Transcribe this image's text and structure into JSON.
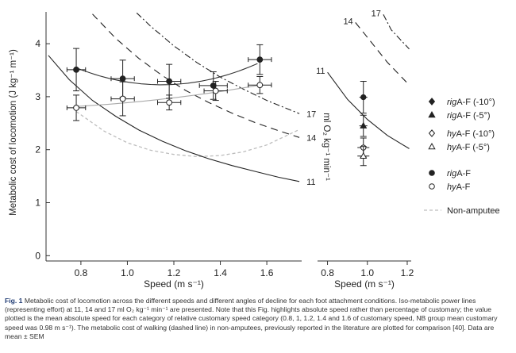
{
  "chart_data": [
    {
      "type": "line",
      "panel": "left",
      "xlabel": "Speed (m s⁻¹)",
      "ylabel": "Metabolic cost of locomotion (J kg⁻¹ m⁻¹)",
      "xlim": [
        0.65,
        1.75
      ],
      "ylim": [
        -0.1,
        4.6
      ],
      "xticks": [
        0.8,
        1.0,
        1.2,
        1.4,
        1.6
      ],
      "yticks": [
        0,
        1,
        2,
        3,
        4
      ],
      "xticklabels": [
        "0.8",
        "1.0",
        "1.2",
        "1.4",
        "1.6"
      ],
      "yticklabels": [
        "0",
        "1",
        "2",
        "3",
        "4"
      ],
      "grid": false,
      "legend": "right",
      "iso_lines": [
        {
          "label": "11",
          "style": "solid",
          "x": [
            0.66,
            0.75,
            0.85,
            0.95,
            1.05,
            1.15,
            1.25,
            1.35,
            1.45,
            1.55,
            1.65,
            1.74
          ],
          "y": [
            3.78,
            3.32,
            2.93,
            2.63,
            2.37,
            2.16,
            1.98,
            1.83,
            1.7,
            1.59,
            1.48,
            1.4
          ]
        },
        {
          "label": "14",
          "style": "dashed",
          "x": [
            0.85,
            0.95,
            1.05,
            1.15,
            1.25,
            1.35,
            1.45,
            1.55,
            1.65,
            1.74
          ],
          "y": [
            4.56,
            4.1,
            3.72,
            3.4,
            3.12,
            2.89,
            2.69,
            2.51,
            2.36,
            2.23
          ]
        },
        {
          "label": "17",
          "style": "dashdot",
          "x": [
            1.04,
            1.1,
            1.2,
            1.3,
            1.4,
            1.5,
            1.6,
            1.74
          ],
          "y": [
            4.58,
            4.33,
            3.96,
            3.64,
            3.37,
            3.14,
            2.93,
            2.68
          ]
        }
      ],
      "non_amputee": {
        "style": "dashed",
        "color": "#bdbdbd",
        "x": [
          0.78,
          0.9,
          1.0,
          1.1,
          1.2,
          1.3,
          1.4,
          1.5,
          1.6,
          1.74
        ],
        "y": [
          2.72,
          2.35,
          2.13,
          1.99,
          1.91,
          1.87,
          1.89,
          1.96,
          2.09,
          2.38
        ]
      },
      "series": [
        {
          "name": "rigA-F",
          "marker": "filled-circle",
          "color": "#222222",
          "fit": true,
          "x": [
            0.78,
            0.98,
            1.18,
            1.37,
            1.57
          ],
          "y": [
            3.51,
            3.34,
            3.29,
            3.21,
            3.7
          ],
          "yerr": [
            0.4,
            0.35,
            0.32,
            0.26,
            0.28
          ],
          "xerr": [
            0.04,
            0.05,
            0.05,
            0.06,
            0.05
          ]
        },
        {
          "name": "hyA-F",
          "marker": "open-circle",
          "color": "#222222",
          "fit": true,
          "x": [
            0.78,
            0.98,
            1.18,
            1.38,
            1.57
          ],
          "y": [
            2.79,
            2.96,
            2.89,
            3.11,
            3.22
          ],
          "yerr": [
            0.24,
            0.32,
            0.14,
            0.18,
            0.16
          ],
          "xerr": [
            0.04,
            0.05,
            0.05,
            0.05,
            0.05
          ]
        }
      ]
    },
    {
      "type": "scatter",
      "panel": "right",
      "xlabel": "Speed (m s⁻¹)",
      "ylabel": "ml O₂ kg⁻¹ min⁻¹",
      "xlim": [
        0.75,
        1.22
      ],
      "xticks": [
        0.8,
        1.0,
        1.2
      ],
      "xticklabels": [
        "0.8",
        "1.0",
        "1.2"
      ],
      "iso_lines": [
        {
          "label": "11",
          "style": "solid",
          "x": [
            0.8,
            0.9,
            1.0,
            1.1,
            1.21
          ],
          "y": [
            3.46,
            2.95,
            2.57,
            2.27,
            2.02
          ]
        },
        {
          "label": "14",
          "style": "dashed",
          "x": [
            0.94,
            1.0,
            1.1,
            1.21
          ],
          "y": [
            4.4,
            4.12,
            3.65,
            3.22
          ]
        },
        {
          "label": "17",
          "style": "dashdot",
          "x": [
            1.08,
            1.12,
            1.21
          ],
          "y": [
            4.55,
            4.26,
            3.9
          ]
        }
      ],
      "series": [
        {
          "name": "rigA-F",
          "marker": "filled-circle",
          "x": [
            0.98
          ],
          "y": [
            2.99
          ],
          "yerr": [
            0.3
          ],
          "xerr": [
            0.02
          ]
        },
        {
          "name": "rigA-F (-5°)",
          "marker": "filled-triangle",
          "x": [
            0.98
          ],
          "y": [
            2.45
          ],
          "yerr": [
            0.2
          ],
          "xerr": [
            0.02
          ]
        },
        {
          "name": "hyA-F",
          "marker": "open-circle",
          "x": [
            0.98
          ],
          "y": [
            2.04
          ],
          "yerr": [
            0.18
          ],
          "xerr": [
            0.03
          ]
        },
        {
          "name": "hyA-F (-5°)",
          "marker": "open-triangle",
          "x": [
            0.98
          ],
          "y": [
            1.88
          ],
          "yerr": [
            0.18
          ],
          "xerr": [
            0.03
          ]
        }
      ]
    }
  ],
  "legend": {
    "entries": [
      {
        "marker": "filled-diamond",
        "prefix": "rig",
        "suffix": "A-F (-10°)"
      },
      {
        "marker": "filled-triangle",
        "prefix": "rig",
        "suffix": "A-F (-5°)"
      },
      {
        "marker": "open-diamond",
        "prefix": "hy",
        "suffix": "A-F (-10°)"
      },
      {
        "marker": "open-triangle",
        "prefix": "hy",
        "suffix": "A-F (-5°)"
      },
      {
        "marker": "filled-circle",
        "prefix": "rig",
        "suffix": "A-F"
      },
      {
        "marker": "open-circle",
        "prefix": "hy",
        "suffix": "A-F"
      },
      {
        "marker": "grey-dashed-line",
        "prefix": "",
        "suffix": "Non-amputee"
      }
    ]
  },
  "caption": {
    "label": "Fig. 1",
    "text": " Metabolic cost of locomotion across the different speeds and different angles of decline for each foot attachment conditions. Iso-metabolic power lines (representing effort) at 11, 14 and 17 ml O₂ kg⁻¹ min⁻¹ are presented. Note that this Fig. highlights absolute speed rather than percentage of customary; the value plotted is the mean absolute speed for each category of relative customary speed category (0.8, 1, 1.2, 1.4 and 1.6 of customary speed, NB group mean customary speed was 0.98 m s⁻¹). The metabolic cost of walking (dashed line) in non-amputees, previously reported in the literature are plotted for comparison [40]. Data are mean ± SEM"
  },
  "colors": {
    "ink": "#222222",
    "grey_line": "#bdbdbd",
    "caption_label": "#1f3b73"
  }
}
